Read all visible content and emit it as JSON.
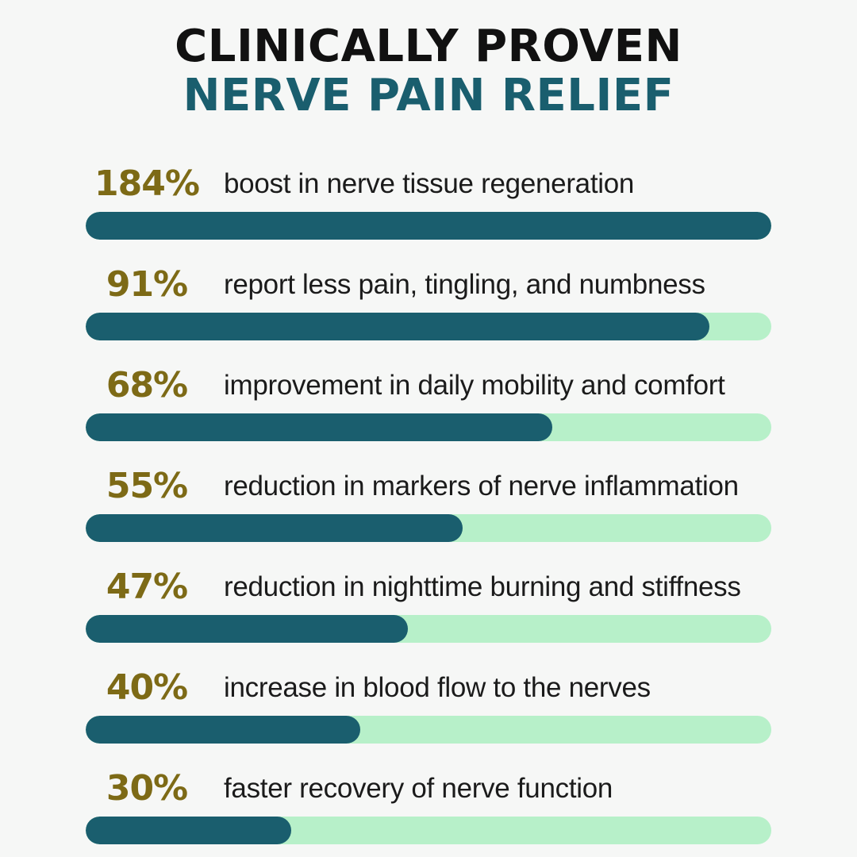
{
  "header": {
    "title_line_1": "CLINICALLY PROVEN",
    "title_line_2": "NERVE PAIN RELIEF"
  },
  "colors": {
    "title_primary": "#111111",
    "title_accent": "#1a5e6e",
    "value_text": "#7d6a16",
    "bar_fill": "#1a5e6e",
    "bar_track": "#b7f0c9"
  },
  "chart_data": {
    "type": "bar",
    "orientation": "horizontal",
    "title": "CLINICALLY PROVEN NERVE PAIN RELIEF",
    "xlabel": "",
    "ylabel": "",
    "xlim": [
      0,
      100
    ],
    "grid": false,
    "categories": [
      "boost in nerve tissue regeneration",
      "report less pain, tingling, and numbness",
      "improvement in daily mobility and comfort",
      "reduction in markers of nerve inflammation",
      "reduction in nighttime burning and stiffness",
      "increase in blood flow to the nerves",
      "faster recovery of nerve function"
    ],
    "value_labels": [
      "184%",
      "91%",
      "68%",
      "55%",
      "47%",
      "40%",
      "30%"
    ],
    "values": [
      184,
      91,
      68,
      55,
      47,
      40,
      30
    ]
  }
}
